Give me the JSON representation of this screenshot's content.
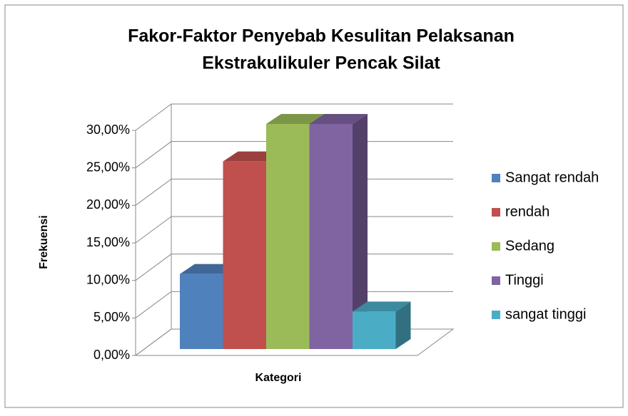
{
  "chart_data": {
    "type": "bar3d",
    "title": [
      "Fakor-Faktor Penyebab Kesulitan Pelaksanan",
      "Ekstrakulikuler Pencak Silat"
    ],
    "x_label": "Kategori",
    "y_label": "Frekuensi",
    "categories": [
      null
    ],
    "series": [
      {
        "name": "Sangat rendah",
        "color": "#4f81bd",
        "values": [
          10
        ]
      },
      {
        "name": "rendah",
        "color": "#c0504d",
        "values": [
          25
        ]
      },
      {
        "name": "Sedang",
        "color": "#9bbb59",
        "values": [
          30
        ]
      },
      {
        "name": "Tinggi",
        "color": "#8064a2",
        "values": [
          30
        ]
      },
      {
        "name": "sangat tinggi",
        "color": "#4bacc6",
        "values": [
          5
        ]
      }
    ],
    "ylim": [
      0,
      30
    ],
    "yticks": [
      {
        "value": 0,
        "label": "0,00%"
      },
      {
        "value": 5,
        "label": "5,00%"
      },
      {
        "value": 10,
        "label": "10,00%"
      },
      {
        "value": 15,
        "label": "15,00%"
      },
      {
        "value": 20,
        "label": "20,00%"
      },
      {
        "value": 25,
        "label": "25,00%"
      },
      {
        "value": 30,
        "label": "30,00%"
      }
    ],
    "grid": true,
    "legend": "right"
  }
}
